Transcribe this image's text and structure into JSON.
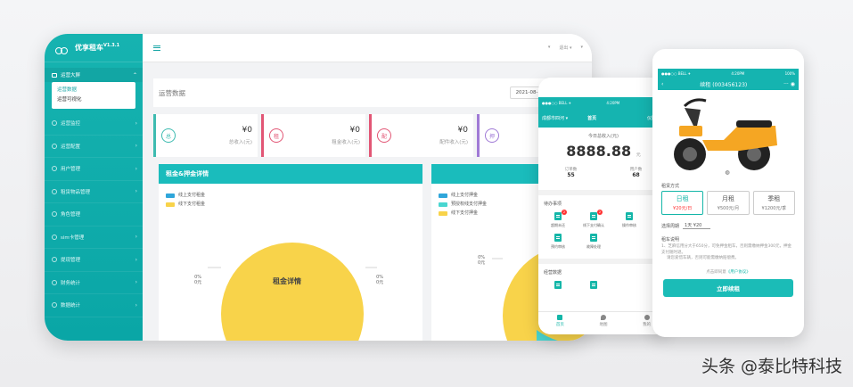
{
  "desktop": {
    "brand": {
      "name": "优享租车",
      "version": "V1.3.1"
    },
    "sidebar": {
      "group": {
        "label": "运营大屏",
        "items": [
          {
            "label": "运营数据"
          },
          {
            "label": "运营可视化"
          }
        ]
      },
      "items": [
        {
          "label": "运营监控"
        },
        {
          "label": "运营配置"
        },
        {
          "label": "用户管理"
        },
        {
          "label": "租赁物品管理"
        },
        {
          "label": "角色管理"
        },
        {
          "label": "sim卡管理"
        },
        {
          "label": "提现管理"
        },
        {
          "label": "财务统计"
        },
        {
          "label": "数据统计"
        }
      ]
    },
    "topbar": {
      "right": [
        "▾",
        "退出 ▾",
        "▾"
      ]
    },
    "page": {
      "title": "运营数据",
      "date_range": "2021-08-12 - 2021-08"
    },
    "stats": [
      {
        "icon": "总",
        "amount": "¥0",
        "label": "总收入(元)",
        "color": "#3dbbb0"
      },
      {
        "icon": "租",
        "amount": "¥0",
        "label": "租金收入(元)",
        "color": "#e25675"
      },
      {
        "icon": "配",
        "amount": "¥0",
        "label": "配件收入(元)",
        "color": "#e25675"
      },
      {
        "icon": "押",
        "amount": "",
        "label": "",
        "color": "#a07ad6"
      }
    ],
    "panel_left": {
      "title": "租金&押金详情",
      "legend": [
        {
          "label": "线上支付租金",
          "color": "#2fa6da"
        },
        {
          "label": "线下支付租金",
          "color": "#f8d34a"
        }
      ],
      "pie_center": "租金详情",
      "left_label": "0%\n0元",
      "right_label": "0%\n0元"
    },
    "panel_right": {
      "legend": [
        {
          "label": "线上支付押金",
          "color": "#2fa6da"
        },
        {
          "label": "预授权线支付押金",
          "color": "#49d6d0"
        },
        {
          "label": "线下支付押金",
          "color": "#f8d34a"
        }
      ],
      "left_label": "0%\n0元"
    }
  },
  "phone1": {
    "status": {
      "left": "●●●○○ BELL ✈",
      "time": "4:20PM",
      "right": "100%"
    },
    "header": {
      "city": "成都市四河 ▾",
      "title": "首页",
      "store": "仪陇门店"
    },
    "income": {
      "label": "今日总收入(元)",
      "amount": "8888.88",
      "unit": "元"
    },
    "stats": [
      {
        "label": "订单数",
        "value": "55"
      },
      {
        "label": "用户数",
        "value": "68"
      }
    ],
    "todo_title": "待办事项",
    "todos": [
      {
        "label": "超期未还",
        "badge": "2"
      },
      {
        "label": "线下支付确认",
        "badge": "2"
      },
      {
        "label": "操作审核",
        "badge": ""
      },
      {
        "label": "预约审核",
        "badge": ""
      },
      {
        "label": "故障处理",
        "badge": ""
      }
    ],
    "ops_title": "经营数据",
    "tabs": [
      {
        "label": "首页"
      },
      {
        "label": "地图"
      },
      {
        "label": "我的"
      }
    ]
  },
  "phone2": {
    "status": {
      "left": "●●●○○ BELL ✈",
      "time": "4:20PM",
      "right": "100%"
    },
    "header": {
      "back": "‹",
      "title": "续租 (003456123)",
      "menu": "··· ◉"
    },
    "rent_method_title": "租赁方式",
    "plans": [
      {
        "name": "日租",
        "price": "¥20元/日"
      },
      {
        "name": "月租",
        "price": "¥500元/月"
      },
      {
        "name": "季租",
        "price": "¥1200元/季"
      }
    ],
    "cycle_label": "选择周期",
    "cycle_value": "1天 ¥20",
    "notes_title": "租车说明",
    "notes": [
      "1、芝麻信用分大于650分，可免押金租车，否则需缴纳押金300元，押金支付随时退。",
      "请您爱惜车辆，否则可能需缴纳赔偿费。"
    ],
    "agree_prefix": "点击即同意",
    "agree_link": "《用户协议》",
    "rent_button": "立即续租"
  },
  "watermark": "头条 @泰比特科技"
}
